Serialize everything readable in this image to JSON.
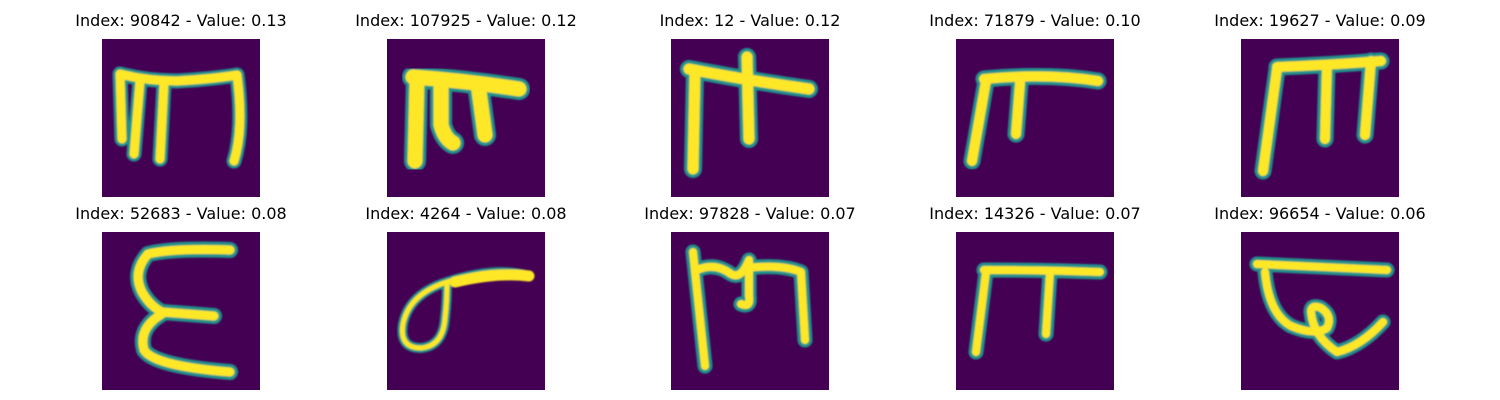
{
  "colors": {
    "background": "#440154",
    "stroke_core": "#fde725",
    "stroke_edge": "#21918c",
    "stroke_halo": "#3b528b"
  },
  "panels": [
    {
      "index": "90842",
      "value": "0.13",
      "title": "Index: 90842 - Value: 0.13",
      "glyph_icon": "handwritten-glyph-icon"
    },
    {
      "index": "107925",
      "value": "0.12",
      "title": "Index: 107925 - Value: 0.12",
      "glyph_icon": "handwritten-glyph-icon"
    },
    {
      "index": "12",
      "value": "0.12",
      "title": "Index: 12 - Value: 0.12",
      "glyph_icon": "handwritten-glyph-icon"
    },
    {
      "index": "71879",
      "value": "0.10",
      "title": "Index: 71879 - Value: 0.10",
      "glyph_icon": "handwritten-glyph-icon"
    },
    {
      "index": "19627",
      "value": "0.09",
      "title": "Index: 19627 - Value: 0.09",
      "glyph_icon": "handwritten-glyph-icon"
    },
    {
      "index": "52683",
      "value": "0.08",
      "title": "Index: 52683 - Value: 0.08",
      "glyph_icon": "handwritten-glyph-icon"
    },
    {
      "index": "4264",
      "value": "0.08",
      "title": "Index: 4264 - Value: 0.08",
      "glyph_icon": "handwritten-glyph-icon"
    },
    {
      "index": "97828",
      "value": "0.07",
      "title": "Index: 97828 - Value: 0.07",
      "glyph_icon": "handwritten-glyph-icon"
    },
    {
      "index": "14326",
      "value": "0.07",
      "title": "Index: 14326 - Value: 0.07",
      "glyph_icon": "handwritten-glyph-icon"
    },
    {
      "index": "96654",
      "value": "0.06",
      "title": "Index: 96654 - Value: 0.06",
      "glyph_icon": "handwritten-glyph-icon"
    }
  ]
}
